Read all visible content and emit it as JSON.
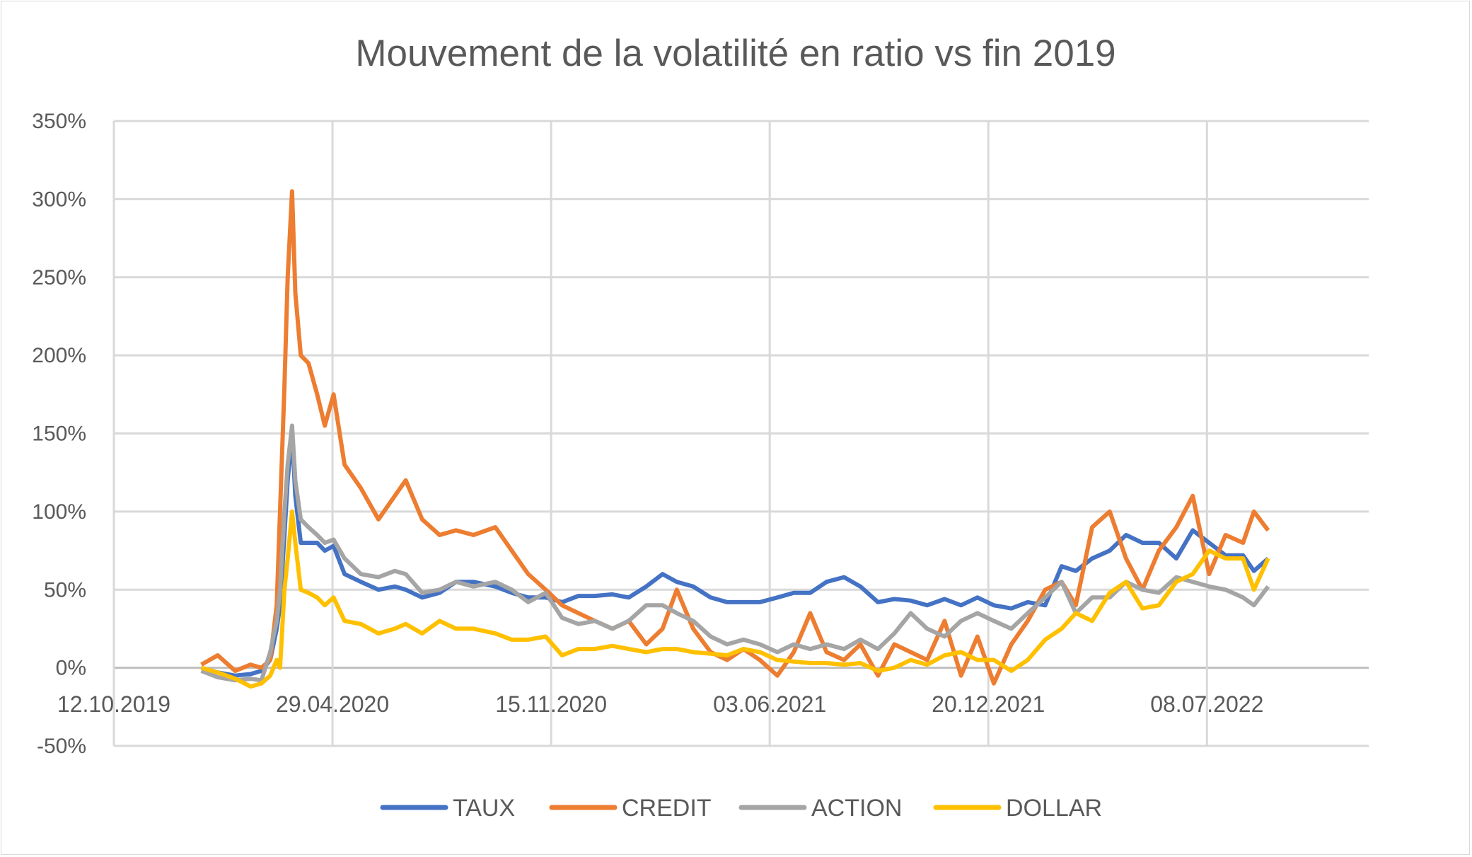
{
  "chart_data": {
    "type": "line",
    "title": "Mouvement de la volatilité en ratio vs fin 2019",
    "xlabel": "",
    "ylabel": "",
    "xlim": [
      "2019-10-12",
      "2022-12-03"
    ],
    "ylim": [
      -50,
      350
    ],
    "y_unit": "%",
    "y_ticks": [
      "-50%",
      "0%",
      "50%",
      "100%",
      "150%",
      "200%",
      "250%",
      "300%",
      "350%"
    ],
    "y_tick_values": [
      -50,
      0,
      50,
      100,
      150,
      200,
      250,
      300,
      350
    ],
    "x_ticks": [
      "12.10.2019",
      "29.04.2020",
      "15.11.2020",
      "03.06.2021",
      "20.12.2021",
      "08.07.2022"
    ],
    "grid": true,
    "legend": "bottom",
    "x": [
      "2019-12-31",
      "2020-01-15",
      "2020-01-31",
      "2020-02-14",
      "2020-02-24",
      "2020-03-03",
      "2020-03-09",
      "2020-03-12",
      "2020-03-16",
      "2020-03-19",
      "2020-03-23",
      "2020-03-26",
      "2020-03-31",
      "2020-04-07",
      "2020-04-15",
      "2020-04-22",
      "2020-04-30",
      "2020-05-10",
      "2020-05-25",
      "2020-06-10",
      "2020-06-25",
      "2020-07-05",
      "2020-07-20",
      "2020-08-05",
      "2020-08-20",
      "2020-09-05",
      "2020-09-25",
      "2020-10-10",
      "2020-10-25",
      "2020-11-10",
      "2020-11-25",
      "2020-12-10",
      "2020-12-25",
      "2021-01-10",
      "2021-01-25",
      "2021-02-10",
      "2021-02-25",
      "2021-03-10",
      "2021-03-25",
      "2021-04-10",
      "2021-04-25",
      "2021-05-10",
      "2021-05-25",
      "2021-06-10",
      "2021-06-25",
      "2021-07-10",
      "2021-07-25",
      "2021-08-10",
      "2021-08-25",
      "2021-09-10",
      "2021-09-25",
      "2021-10-10",
      "2021-10-25",
      "2021-11-10",
      "2021-11-25",
      "2021-12-10",
      "2021-12-25",
      "2022-01-10",
      "2022-01-25",
      "2022-02-10",
      "2022-02-25",
      "2022-03-10",
      "2022-03-25",
      "2022-04-10",
      "2022-04-25",
      "2022-05-10",
      "2022-05-25",
      "2022-06-10",
      "2022-06-25",
      "2022-07-10",
      "2022-07-25",
      "2022-08-10",
      "2022-08-20",
      "2022-09-02"
    ],
    "series": [
      {
        "name": "TAUX",
        "color": "#4472c4",
        "values": [
          0,
          -3,
          -5,
          -4,
          -2,
          5,
          25,
          40,
          85,
          120,
          150,
          110,
          80,
          80,
          80,
          75,
          78,
          60,
          55,
          50,
          52,
          50,
          45,
          48,
          55,
          55,
          52,
          48,
          45,
          45,
          42,
          46,
          46,
          47,
          45,
          52,
          60,
          55,
          52,
          45,
          42,
          42,
          42,
          45,
          48,
          48,
          55,
          58,
          52,
          42,
          44,
          43,
          40,
          44,
          40,
          45,
          40,
          38,
          42,
          40,
          65,
          62,
          70,
          75,
          85,
          80,
          80,
          70,
          88,
          80,
          72,
          72,
          62,
          70
        ]
      },
      {
        "name": "CREDIT",
        "color": "#ed7d31",
        "values": [
          2,
          8,
          -2,
          2,
          0,
          5,
          40,
          100,
          180,
          250,
          305,
          240,
          200,
          195,
          175,
          155,
          175,
          130,
          115,
          95,
          110,
          120,
          95,
          85,
          88,
          85,
          90,
          75,
          60,
          50,
          40,
          35,
          30,
          25,
          30,
          15,
          25,
          50,
          25,
          10,
          5,
          12,
          5,
          -5,
          10,
          35,
          10,
          5,
          15,
          -5,
          15,
          10,
          5,
          30,
          -5,
          20,
          -10,
          15,
          30,
          50,
          55,
          40,
          90,
          100,
          70,
          50,
          75,
          90,
          110,
          60,
          85,
          80,
          100,
          88
        ]
      },
      {
        "name": "ACTION",
        "color": "#a5a5a5",
        "values": [
          -2,
          -6,
          -8,
          -7,
          -8,
          10,
          30,
          50,
          100,
          130,
          155,
          120,
          95,
          90,
          85,
          80,
          82,
          70,
          60,
          58,
          62,
          60,
          48,
          50,
          55,
          52,
          55,
          50,
          42,
          48,
          32,
          28,
          30,
          25,
          30,
          40,
          40,
          35,
          30,
          20,
          15,
          18,
          15,
          10,
          15,
          12,
          15,
          12,
          18,
          12,
          22,
          35,
          25,
          20,
          30,
          35,
          30,
          25,
          35,
          45,
          55,
          35,
          45,
          45,
          55,
          50,
          48,
          58,
          55,
          52,
          50,
          45,
          40,
          52
        ]
      },
      {
        "name": "DOLLAR",
        "color": "#ffc000",
        "values": [
          0,
          -3,
          -7,
          -12,
          -10,
          -5,
          5,
          0,
          50,
          70,
          100,
          80,
          50,
          48,
          45,
          40,
          45,
          30,
          28,
          22,
          25,
          28,
          22,
          30,
          25,
          25,
          22,
          18,
          18,
          20,
          8,
          12,
          12,
          14,
          12,
          10,
          12,
          12,
          10,
          9,
          8,
          12,
          10,
          5,
          4,
          3,
          3,
          2,
          3,
          -2,
          0,
          5,
          2,
          8,
          10,
          5,
          5,
          -2,
          5,
          18,
          25,
          35,
          30,
          48,
          55,
          38,
          40,
          55,
          60,
          75,
          70,
          70,
          50,
          70
        ]
      }
    ]
  }
}
